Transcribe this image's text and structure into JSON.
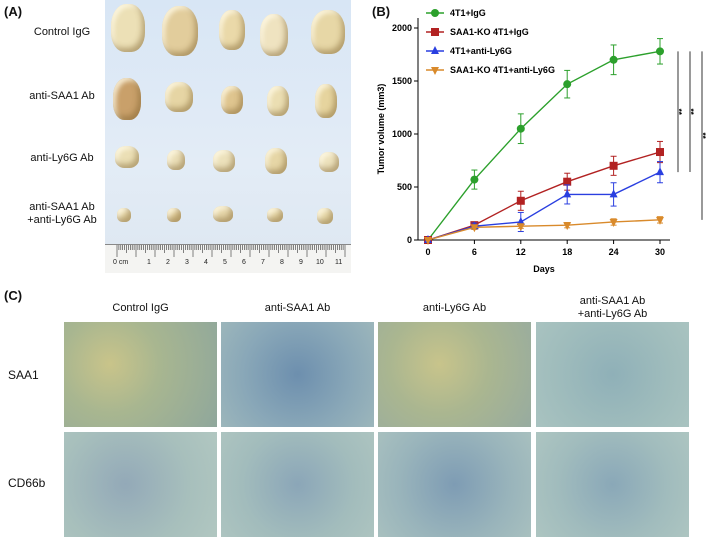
{
  "panel_a": {
    "label": "(A)",
    "rows": [
      "Control IgG",
      "anti-SAA1 Ab",
      "anti-Ly6G Ab",
      "anti-SAA1 Ab",
      "+anti-Ly6G Ab"
    ],
    "ruler_labels": [
      "0 cm",
      "1",
      "2",
      "3",
      "4",
      "5",
      "6",
      "7",
      "8",
      "9",
      "10",
      "11"
    ]
  },
  "panel_b": {
    "label": "(B)"
  },
  "panel_c": {
    "label": "(C)",
    "columns": [
      "Control IgG",
      "anti-SAA1 Ab",
      "anti-Ly6G Ab",
      "anti-SAA1 Ab",
      "+anti-Ly6G Ab"
    ],
    "rows": [
      "SAA1",
      "CD66b"
    ]
  },
  "chart_data": {
    "type": "line",
    "xlabel": "Days",
    "ylabel": "Tumor volume (mm3)",
    "x": [
      0,
      6,
      12,
      18,
      24,
      30
    ],
    "xlim": [
      0,
      30
    ],
    "ylim": [
      0,
      2000
    ],
    "yticks": [
      0,
      500,
      1000,
      1500,
      2000
    ],
    "series": [
      {
        "name": "4T1+IgG",
        "color": "#2ca02c",
        "marker": "circle",
        "values": [
          0,
          570,
          1050,
          1470,
          1700,
          1780
        ],
        "err": [
          0,
          90,
          140,
          130,
          140,
          120
        ]
      },
      {
        "name": "SAA1-KO 4T1+IgG",
        "color": "#b22222",
        "marker": "square",
        "values": [
          0,
          140,
          370,
          550,
          700,
          830
        ],
        "err": [
          0,
          30,
          90,
          80,
          90,
          100
        ]
      },
      {
        "name": "4T1+anti-Ly6G",
        "color": "#2a3fe0",
        "marker": "triangle",
        "values": [
          0,
          130,
          170,
          430,
          430,
          640
        ],
        "err": [
          0,
          30,
          90,
          90,
          110,
          100
        ]
      },
      {
        "name": "SAA1-KO 4T1+anti-Ly6G",
        "color": "#d98a2b",
        "marker": "triangle-down",
        "values": [
          0,
          120,
          130,
          140,
          170,
          190
        ],
        "err": [
          0,
          20,
          20,
          25,
          30,
          30
        ]
      }
    ],
    "significance": [
      "**",
      "**",
      "**"
    ],
    "legend_position": "top-left"
  }
}
